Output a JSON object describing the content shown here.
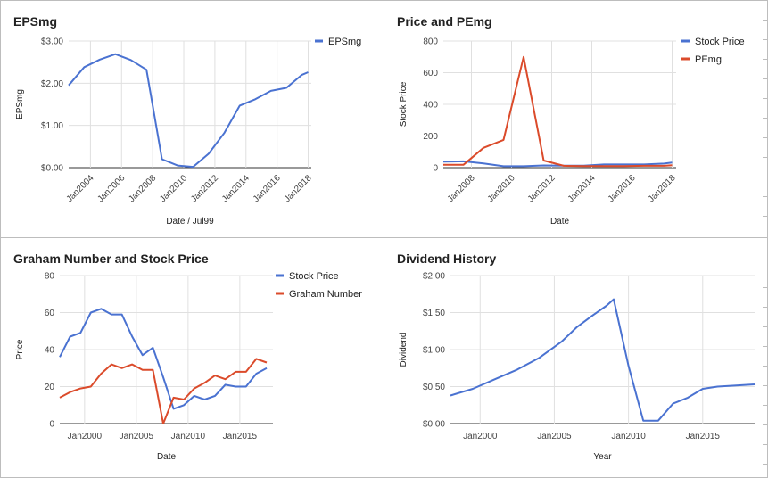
{
  "chart_data": [
    {
      "id": "p1",
      "type": "line",
      "title": "EPSmg",
      "xlabel": "Date / Jul99",
      "ylabel": "EPSmg",
      "x_type": "time",
      "xlim": [
        2002.6,
        2018.2
      ],
      "ylim": [
        0,
        3
      ],
      "y_ticks": [
        0,
        1,
        2,
        3
      ],
      "y_tick_labels": [
        "$0.00",
        "$1.00",
        "$2.00",
        "$3.00"
      ],
      "x_ticks": [
        2004,
        2006,
        2008,
        2010,
        2012,
        2014,
        2016,
        2018
      ],
      "x_tick_labels": [
        "Jan2004",
        "Jan2006",
        "Jan2008",
        "Jan2010",
        "Jan2012",
        "Jan2014",
        "Jan2016",
        "Jan2018"
      ],
      "x_tick_rotate": -45,
      "grid": true,
      "legend": "top-right",
      "series": [
        {
          "name": "EPSmg",
          "color": "#4a72d1",
          "points": [
            [
              2002.6,
              1.95
            ],
            [
              2003.6,
              2.38
            ],
            [
              2004.6,
              2.56
            ],
            [
              2005.6,
              2.69
            ],
            [
              2006.6,
              2.55
            ],
            [
              2007.6,
              2.32
            ],
            [
              2008.6,
              0.2
            ],
            [
              2009.6,
              0.05
            ],
            [
              2010.6,
              0.02
            ],
            [
              2011.6,
              0.33
            ],
            [
              2012.6,
              0.82
            ],
            [
              2013.6,
              1.47
            ],
            [
              2014.6,
              1.62
            ],
            [
              2015.6,
              1.82
            ],
            [
              2016.6,
              1.89
            ],
            [
              2017.6,
              2.2
            ],
            [
              2018.0,
              2.26
            ]
          ]
        }
      ]
    },
    {
      "id": "p2",
      "type": "line",
      "title": "Price and PEmg",
      "xlabel": "Date",
      "ylabel": "Stock Price",
      "x_type": "time",
      "xlim": [
        2006.6,
        2018.2
      ],
      "ylim": [
        0,
        800
      ],
      "y_ticks": [
        0,
        200,
        400,
        600,
        800
      ],
      "y_tick_labels": [
        "0",
        "200",
        "400",
        "600",
        "800"
      ],
      "x_ticks": [
        2008,
        2010,
        2012,
        2014,
        2016,
        2018
      ],
      "x_tick_labels": [
        "Jan2008",
        "Jan2010",
        "Jan2012",
        "Jan2014",
        "Jan2016",
        "Jan2018"
      ],
      "x_tick_rotate": -45,
      "grid": true,
      "legend": "top-right",
      "series": [
        {
          "name": "Stock Price",
          "color": "#4a72d1",
          "points": [
            [
              2006.6,
              38
            ],
            [
              2007.6,
              40
            ],
            [
              2008.6,
              27
            ],
            [
              2009.6,
              9
            ],
            [
              2010.6,
              9
            ],
            [
              2011.6,
              14
            ],
            [
              2012.6,
              13
            ],
            [
              2013.6,
              13
            ],
            [
              2014.6,
              20
            ],
            [
              2015.6,
              20
            ],
            [
              2016.6,
              20
            ],
            [
              2017.6,
              26
            ],
            [
              2018.0,
              32
            ]
          ]
        },
        {
          "name": "PEmg",
          "color": "#db4b2b",
          "points": [
            [
              2006.6,
              18
            ],
            [
              2007.6,
              18
            ],
            [
              2008.6,
              125
            ],
            [
              2009.6,
              175
            ],
            [
              2010.6,
              700
            ],
            [
              2011.6,
              45
            ],
            [
              2012.6,
              12
            ],
            [
              2013.6,
              10
            ],
            [
              2014.6,
              10
            ],
            [
              2015.6,
              10
            ],
            [
              2016.6,
              12
            ],
            [
              2017.6,
              12
            ],
            [
              2018.0,
              15
            ]
          ]
        }
      ]
    },
    {
      "id": "p3",
      "type": "line",
      "title": "Graham Number and Stock Price",
      "xlabel": "Date",
      "ylabel": "Price",
      "x_type": "time",
      "xlim": [
        1997.6,
        2018.2
      ],
      "ylim": [
        0,
        80
      ],
      "y_ticks": [
        0,
        20,
        40,
        60,
        80
      ],
      "y_tick_labels": [
        "0",
        "20",
        "40",
        "60",
        "80"
      ],
      "x_ticks": [
        2000,
        2005,
        2010,
        2015
      ],
      "x_tick_labels": [
        "Jan2000",
        "Jan2005",
        "Jan2010",
        "Jan2015"
      ],
      "x_tick_rotate": 0,
      "grid": true,
      "legend": "top-right",
      "series": [
        {
          "name": "Stock Price",
          "color": "#4a72d1",
          "points": [
            [
              1997.6,
              36
            ],
            [
              1998.6,
              47
            ],
            [
              1999.6,
              49
            ],
            [
              2000.6,
              60
            ],
            [
              2001.6,
              62
            ],
            [
              2002.6,
              59
            ],
            [
              2003.6,
              59
            ],
            [
              2004.6,
              47
            ],
            [
              2005.6,
              37
            ],
            [
              2006.6,
              41
            ],
            [
              2007.6,
              25
            ],
            [
              2008.6,
              8
            ],
            [
              2009.6,
              10
            ],
            [
              2010.6,
              15
            ],
            [
              2011.6,
              13
            ],
            [
              2012.6,
              15
            ],
            [
              2013.6,
              21
            ],
            [
              2014.6,
              20
            ],
            [
              2015.6,
              20
            ],
            [
              2016.6,
              27
            ],
            [
              2017.6,
              30
            ]
          ]
        },
        {
          "name": "Graham Number",
          "color": "#db4b2b",
          "points": [
            [
              1997.6,
              14
            ],
            [
              1998.6,
              17
            ],
            [
              1999.6,
              19
            ],
            [
              2000.6,
              20
            ],
            [
              2001.6,
              27
            ],
            [
              2002.6,
              32
            ],
            [
              2003.6,
              30
            ],
            [
              2004.6,
              32
            ],
            [
              2005.6,
              29
            ],
            [
              2006.6,
              29
            ],
            [
              2007.6,
              0
            ],
            [
              2008.6,
              14
            ],
            [
              2009.6,
              13
            ],
            [
              2010.6,
              19
            ],
            [
              2011.6,
              22
            ],
            [
              2012.6,
              26
            ],
            [
              2013.6,
              24
            ],
            [
              2014.6,
              28
            ],
            [
              2015.6,
              28
            ],
            [
              2016.6,
              35
            ],
            [
              2017.6,
              33
            ]
          ]
        }
      ]
    },
    {
      "id": "p4",
      "type": "line",
      "title": "Dividend History",
      "xlabel": "Year",
      "ylabel": "Dividend",
      "x_type": "time",
      "xlim": [
        1998.0,
        2018.5
      ],
      "ylim": [
        0,
        2
      ],
      "y_ticks": [
        0,
        0.5,
        1,
        1.5,
        2
      ],
      "y_tick_labels": [
        "$0.00",
        "$0.50",
        "$1.00",
        "$1.50",
        "$2.00"
      ],
      "x_ticks": [
        2000,
        2005,
        2010,
        2015
      ],
      "x_tick_labels": [
        "Jan2000",
        "Jan2005",
        "Jan2010",
        "Jan2015"
      ],
      "x_tick_rotate": 0,
      "grid": true,
      "legend": "none",
      "series": [
        {
          "name": "",
          "color": "#4a72d1",
          "points": [
            [
              1998.0,
              0.38
            ],
            [
              1999.5,
              0.47
            ],
            [
              2001.0,
              0.6
            ],
            [
              2002.5,
              0.73
            ],
            [
              2004.0,
              0.89
            ],
            [
              2005.5,
              1.11
            ],
            [
              2006.5,
              1.3
            ],
            [
              2007.5,
              1.45
            ],
            [
              2008.5,
              1.59
            ],
            [
              2009.0,
              1.68
            ],
            [
              2010.0,
              0.78
            ],
            [
              2011.0,
              0.04
            ],
            [
              2012.0,
              0.04
            ],
            [
              2013.0,
              0.27
            ],
            [
              2014.0,
              0.35
            ],
            [
              2015.0,
              0.47
            ],
            [
              2016.0,
              0.5
            ],
            [
              2018.5,
              0.53
            ]
          ]
        }
      ]
    }
  ]
}
